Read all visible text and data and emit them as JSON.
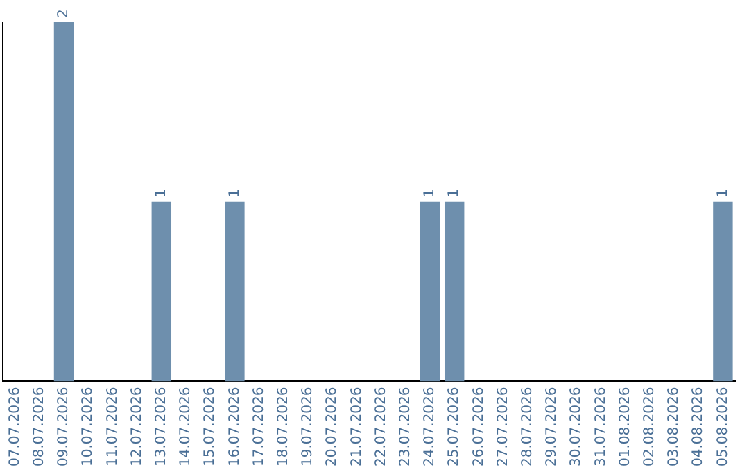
{
  "chart_data": {
    "type": "bar",
    "categories": [
      "07.07.2026",
      "08.07.2026",
      "09.07.2026",
      "10.07.2026",
      "11.07.2026",
      "12.07.2026",
      "13.07.2026",
      "14.07.2026",
      "15.07.2026",
      "16.07.2026",
      "17.07.2026",
      "18.07.2026",
      "19.07.2026",
      "20.07.2026",
      "21.07.2026",
      "22.07.2026",
      "23.07.2026",
      "24.07.2026",
      "25.07.2026",
      "26.07.2026",
      "27.07.2026",
      "28.07.2026",
      "29.07.2026",
      "30.07.2026",
      "31.07.2026",
      "01.08.2026",
      "02.08.2026",
      "03.08.2026",
      "04.08.2026",
      "05.08.2026"
    ],
    "values": [
      null,
      null,
      2,
      null,
      null,
      null,
      1,
      null,
      null,
      1,
      null,
      null,
      null,
      null,
      null,
      null,
      null,
      1,
      1,
      null,
      null,
      null,
      null,
      null,
      null,
      null,
      null,
      null,
      null,
      1
    ],
    "color": "#6e8fad",
    "data_labels": true,
    "grid": false,
    "legend": false,
    "tick_labels": "x"
  }
}
